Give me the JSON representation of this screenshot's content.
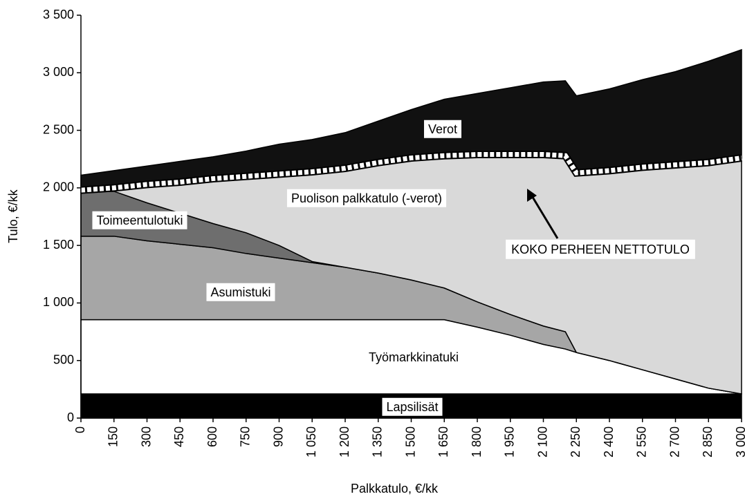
{
  "chart_data": {
    "type": "stacked_area",
    "x_label": "Palkkatulo, €/kk",
    "y_label": "Tulo, €/kk",
    "x": [
      0,
      150,
      300,
      450,
      600,
      750,
      900,
      1050,
      1200,
      1350,
      1500,
      1650,
      1800,
      1950,
      2100,
      2200,
      2250,
      2400,
      2550,
      2700,
      2850,
      3000
    ],
    "series": [
      {
        "name": "Lapsilisät",
        "color": "#000000",
        "values": [
          210,
          210,
          210,
          210,
          210,
          210,
          210,
          210,
          210,
          210,
          210,
          210,
          210,
          210,
          210,
          210,
          210,
          210,
          210,
          210,
          210,
          210
        ]
      },
      {
        "name": "Työmarkkinatuki",
        "color": "#ffffff",
        "values": [
          645,
          645,
          645,
          645,
          645,
          645,
          645,
          645,
          645,
          645,
          645,
          645,
          580,
          510,
          430,
          390,
          360,
          290,
          210,
          130,
          50,
          0
        ]
      },
      {
        "name": "Asumistuki",
        "color": "#a6a6a6",
        "values": [
          725,
          725,
          685,
          655,
          625,
          575,
          535,
          495,
          455,
          405,
          345,
          275,
          220,
          180,
          160,
          150,
          0,
          0,
          0,
          0,
          0,
          0
        ]
      },
      {
        "name": "Toimeentulotuki",
        "color": "#6e6e6e",
        "values": [
          380,
          390,
          330,
          270,
          210,
          180,
          110,
          10,
          0,
          0,
          0,
          0,
          0,
          0,
          0,
          0,
          0,
          0,
          0,
          0,
          0,
          0
        ]
      },
      {
        "name": "Puolison palkkatulo (-verot)",
        "color": "#d9d9d9",
        "values": [
          20,
          30,
          160,
          270,
          390,
          490,
          620,
          780,
          860,
          960,
          1060,
          1150,
          1280,
          1390,
          1490,
          1530,
          1560,
          1650,
          1760,
          1860,
          1960,
          2050
        ]
      },
      {
        "name": "Verot",
        "color": "#111111",
        "values": [
          130,
          150,
          160,
          180,
          190,
          220,
          260,
          280,
          310,
          360,
          420,
          490,
          530,
          580,
          630,
          650,
          670,
          710,
          760,
          810,
          880,
          940
        ]
      }
    ],
    "annotations": [
      "KOKO PERHEEN NETTOTULO"
    ],
    "xlim": [
      0,
      3000
    ],
    "ylim": [
      0,
      3500
    ],
    "xticks": [
      0,
      150,
      300,
      450,
      600,
      750,
      900,
      {
        "value": 1050,
        "label": "1 050"
      },
      {
        "value": 1200,
        "label": "1 200"
      },
      {
        "value": 1350,
        "label": "1 350"
      },
      {
        "value": 1500,
        "label": "1 500"
      },
      {
        "value": 1650,
        "label": "1 650"
      },
      {
        "value": 1800,
        "label": "1 800"
      },
      {
        "value": 1950,
        "label": "1 950"
      },
      {
        "value": 2100,
        "label": "2 100"
      },
      {
        "value": 2250,
        "label": "2 250"
      },
      {
        "value": 2400,
        "label": "2 400"
      },
      {
        "value": 2550,
        "label": "2 550"
      },
      {
        "value": 2700,
        "label": "2 700"
      },
      {
        "value": 2850,
        "label": "2 850"
      },
      {
        "value": 3000,
        "label": "3 000"
      }
    ],
    "yticks": [
      0,
      500,
      {
        "value": 1000,
        "label": "1 000"
      },
      {
        "value": 1500,
        "label": "1 500"
      },
      {
        "value": 2000,
        "label": "2 000"
      },
      {
        "value": 2500,
        "label": "2 500"
      },
      {
        "value": 3000,
        "label": "3 000"
      },
      {
        "value": 3500,
        "label": "3 500"
      }
    ]
  }
}
